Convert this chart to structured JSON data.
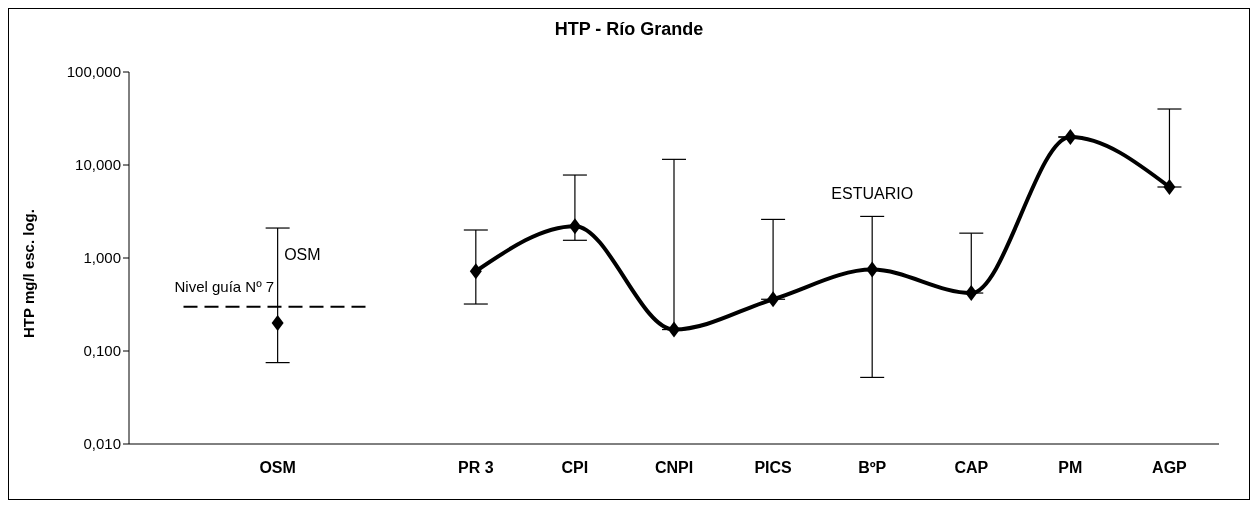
{
  "chart_data": {
    "type": "line",
    "title": "HTP  - Río Grande",
    "ylabel": "HTP mg/l     esc. log.",
    "categories": [
      null,
      "OSM",
      null,
      "PR 3",
      "CPI",
      "CNPI",
      "PICS",
      "BºP",
      "CAP",
      "PM",
      "AGP"
    ],
    "series": [
      {
        "type": "scatter",
        "color": "#000000",
        "values": [
          null,
          0.2,
          null,
          null,
          null,
          null,
          null,
          null,
          null,
          null,
          null
        ],
        "errors": [
          null,
          [
            0.075,
            2.1
          ],
          null,
          null,
          null,
          null,
          null,
          null,
          null,
          null,
          null
        ]
      },
      {
        "color": "#000000",
        "values": [
          null,
          null,
          null,
          0.72,
          2.2,
          0.17,
          0.36,
          0.75,
          0.42,
          20,
          5.8
        ],
        "errors": [
          null,
          null,
          null,
          [
            0.32,
            2.0
          ],
          [
            1.55,
            7.8
          ],
          [
            0.17,
            11.5
          ],
          [
            0.36,
            2.6
          ],
          [
            0.052,
            2.8
          ],
          [
            0.42,
            1.85
          ],
          null,
          [
            5.8,
            40
          ]
        ]
      }
    ],
    "log": true,
    "ylim": [
      0.01,
      100
    ],
    "yticks": [
      {
        "value": 0.01,
        "label": "0,010"
      },
      {
        "value": 0.1,
        "label": "0,100"
      },
      {
        "value": 1,
        "label": "1,000"
      },
      {
        "value": 10,
        "label": "10,000"
      },
      {
        "value": 100,
        "label": "100,000"
      }
    ],
    "ref_lines": [
      {
        "axis": "y",
        "value": 0.3,
        "label": "Nivel guía Nº 7",
        "line_style": "dashed",
        "color": "#000000"
      }
    ],
    "annotations": [
      "OSM",
      "ESTUARIO"
    ],
    "marker": "diamond",
    "line_style": "solid"
  }
}
